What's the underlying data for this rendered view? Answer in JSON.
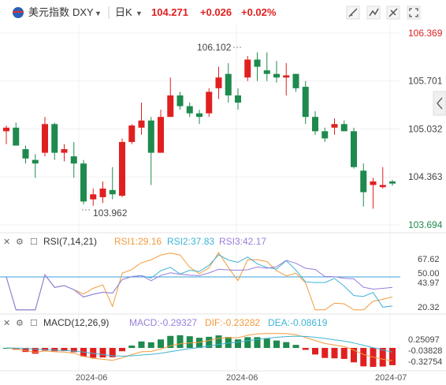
{
  "header": {
    "name": "美元指数",
    "symbol": "DXY",
    "period": "日K",
    "price": "104.271",
    "change": "+0.026",
    "change_pct": "+0.02%",
    "tool_icons": [
      "draw-line-icon",
      "indicator-icon",
      "settings-icon",
      "fullscreen-icon"
    ]
  },
  "colors": {
    "up": "#e02020",
    "down": "#1e8a4e",
    "ma": "#7ab6ea",
    "rsi1": "#f39a3c",
    "rsi2": "#3fb3d4",
    "rsi3": "#9a7ddd",
    "mid": "#3aa0d8"
  },
  "rsi": {
    "label": "RSI(7,14,21)",
    "rsi1": "RSI1:29.16",
    "rsi2": "RSI2:37.83",
    "rsi3": "RSI3:42.17",
    "ticks": [
      "67.62",
      "50.00",
      "43.97",
      "20.32"
    ]
  },
  "macd": {
    "label": "MACD(12,26,9)",
    "macd": "MACD:-0.29327",
    "dif": "DIF:-0.23282",
    "dea": "DEA:-0.08619",
    "ticks": [
      "0.25097",
      "-0.03828",
      "-0.32754"
    ]
  },
  "x_labels": [
    "2024-06",
    "2024-06",
    "2024-07"
  ],
  "chart_data": {
    "type": "candlestick",
    "y_ticks": [
      106.369,
      105.701,
      105.032,
      104.363,
      103.694
    ],
    "ylim": [
      103.694,
      106.369
    ],
    "annotations": [
      {
        "text": "106.102",
        "value": 106.102
      },
      {
        "text": "103.962",
        "value": 103.962
      }
    ],
    "candles": [
      [
        105.0,
        105.08,
        104.82,
        105.05
      ],
      [
        105.05,
        105.12,
        104.82,
        104.8
      ],
      [
        104.75,
        104.8,
        104.55,
        104.62
      ],
      [
        104.6,
        104.68,
        104.35,
        104.55
      ],
      [
        104.7,
        105.2,
        104.65,
        105.1
      ],
      [
        105.1,
        105.12,
        104.6,
        104.7
      ],
      [
        104.7,
        104.82,
        104.58,
        104.75
      ],
      [
        104.65,
        104.85,
        104.35,
        104.55
      ],
      [
        104.55,
        104.6,
        103.98,
        104.02
      ],
      [
        104.05,
        104.2,
        103.96,
        104.12
      ],
      [
        104.08,
        104.3,
        104.0,
        104.2
      ],
      [
        104.18,
        104.5,
        104.05,
        104.12
      ],
      [
        104.1,
        104.9,
        104.08,
        104.85
      ],
      [
        104.85,
        105.1,
        104.82,
        105.08
      ],
      [
        105.05,
        105.4,
        104.95,
        105.15
      ],
      [
        105.15,
        105.2,
        104.25,
        104.7
      ],
      [
        104.7,
        105.3,
        104.7,
        105.2
      ],
      [
        105.2,
        105.75,
        105.2,
        105.5
      ],
      [
        105.5,
        105.55,
        105.3,
        105.35
      ],
      [
        105.35,
        105.4,
        105.2,
        105.25
      ],
      [
        105.25,
        105.3,
        105.1,
        105.2
      ],
      [
        105.25,
        105.6,
        105.2,
        105.55
      ],
      [
        105.6,
        105.9,
        105.45,
        105.75
      ],
      [
        105.8,
        105.95,
        105.4,
        105.5
      ],
      [
        105.5,
        105.6,
        105.3,
        105.4
      ],
      [
        105.75,
        106.05,
        105.7,
        106.0
      ],
      [
        106.0,
        106.1,
        105.7,
        105.9
      ],
      [
        105.85,
        106.1,
        105.7,
        105.8
      ],
      [
        105.8,
        105.98,
        105.68,
        105.75
      ],
      [
        105.75,
        105.95,
        105.5,
        105.78
      ],
      [
        105.8,
        105.8,
        105.55,
        105.6
      ],
      [
        105.62,
        105.7,
        105.1,
        105.2
      ],
      [
        105.2,
        105.28,
        104.95,
        105.0
      ],
      [
        105.0,
        105.05,
        104.85,
        104.9
      ],
      [
        105.05,
        105.18,
        104.95,
        105.1
      ],
      [
        105.1,
        105.15,
        105.02,
        105.0
      ],
      [
        105.0,
        105.05,
        104.48,
        104.5
      ],
      [
        104.45,
        104.55,
        103.95,
        104.15
      ],
      [
        104.25,
        104.35,
        103.92,
        104.3
      ],
      [
        104.22,
        104.5,
        104.2,
        104.25
      ],
      [
        104.3,
        104.32,
        104.24,
        104.27
      ]
    ]
  }
}
